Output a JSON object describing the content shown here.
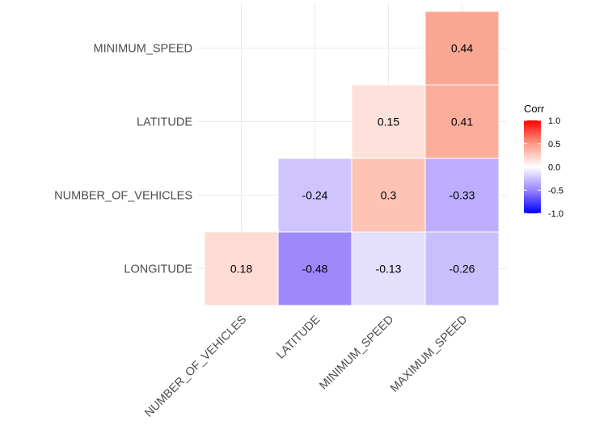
{
  "chart_data": {
    "type": "heatmap",
    "x_categories": [
      "NUMBER_OF_VEHICLES",
      "LATITUDE",
      "MINIMUM_SPEED",
      "MAXIMUM_SPEED"
    ],
    "y_categories": [
      "LONGITUDE",
      "NUMBER_OF_VEHICLES",
      "LATITUDE",
      "MINIMUM_SPEED"
    ],
    "cells": [
      {
        "x": "NUMBER_OF_VEHICLES",
        "y": "LONGITUDE",
        "value": 0.18,
        "label": "0.18"
      },
      {
        "x": "LATITUDE",
        "y": "LONGITUDE",
        "value": -0.48,
        "label": "-0.48"
      },
      {
        "x": "MINIMUM_SPEED",
        "y": "LONGITUDE",
        "value": -0.13,
        "label": "-0.13"
      },
      {
        "x": "MAXIMUM_SPEED",
        "y": "LONGITUDE",
        "value": -0.26,
        "label": "-0.26"
      },
      {
        "x": "LATITUDE",
        "y": "NUMBER_OF_VEHICLES",
        "value": -0.24,
        "label": "-0.24"
      },
      {
        "x": "MINIMUM_SPEED",
        "y": "NUMBER_OF_VEHICLES",
        "value": 0.3,
        "label": "0.3"
      },
      {
        "x": "MAXIMUM_SPEED",
        "y": "NUMBER_OF_VEHICLES",
        "value": -0.33,
        "label": "-0.33"
      },
      {
        "x": "MINIMUM_SPEED",
        "y": "LATITUDE",
        "value": 0.15,
        "label": "0.15"
      },
      {
        "x": "MAXIMUM_SPEED",
        "y": "LATITUDE",
        "value": 0.41,
        "label": "0.41"
      },
      {
        "x": "MAXIMUM_SPEED",
        "y": "MINIMUM_SPEED",
        "value": 0.44,
        "label": "0.44"
      }
    ],
    "legend": {
      "title": "Corr",
      "ticks": [
        1.0,
        0.5,
        0.0,
        -0.5,
        -1.0
      ],
      "tick_labels": [
        "1.0",
        "0.5",
        "0.0",
        "-0.5",
        "-1.0"
      ],
      "range": [
        -1,
        1
      ],
      "placement": "right"
    },
    "colors": {
      "low": "#0000ff",
      "mid": "#ffffff",
      "high": "#ff0000",
      "grid": "#ebebeb",
      "tile_border": "#ffffff"
    },
    "grid": true,
    "x_tick_rotation": "45deg",
    "layout": "lower-triangle correlation matrix"
  }
}
